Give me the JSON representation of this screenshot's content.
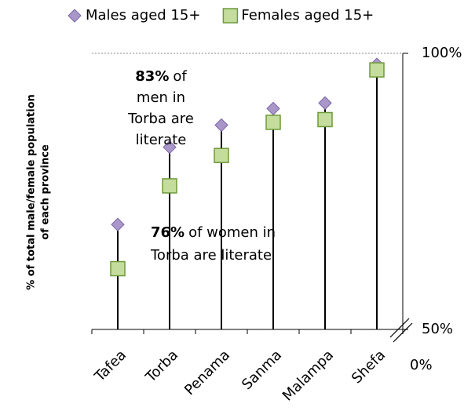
{
  "chart_data": {
    "type": "lollipop",
    "y_axis_label": [
      "% of total male/female population",
      "of each province"
    ],
    "categories": [
      "Tafea",
      "Torba",
      "Penama",
      "Sanma",
      "Malampa",
      "Shefa"
    ],
    "series": [
      {
        "name": "Males aged 15+",
        "color": "#a997c9",
        "marker": "diamond",
        "values": [
          69,
          83,
          87,
          90,
          91,
          98
        ]
      },
      {
        "name": "Females aged 15+",
        "color": "#c4dd9d",
        "marker": "square",
        "values": [
          61,
          76,
          81.5,
          87.5,
          88,
          97
        ]
      }
    ],
    "ylim": [
      50,
      100
    ],
    "yticks": [
      {
        "value": 50,
        "label": "50%"
      },
      {
        "value": 100,
        "label": "100%"
      }
    ],
    "axis_break_label": "0%",
    "annotations": [
      {
        "bold": "83%",
        "lines": [
          "of",
          "men in",
          "Torba are",
          "literate"
        ]
      },
      {
        "bold": "76%",
        "lines": [
          "of women in",
          "Torba are literate"
        ]
      }
    ]
  }
}
